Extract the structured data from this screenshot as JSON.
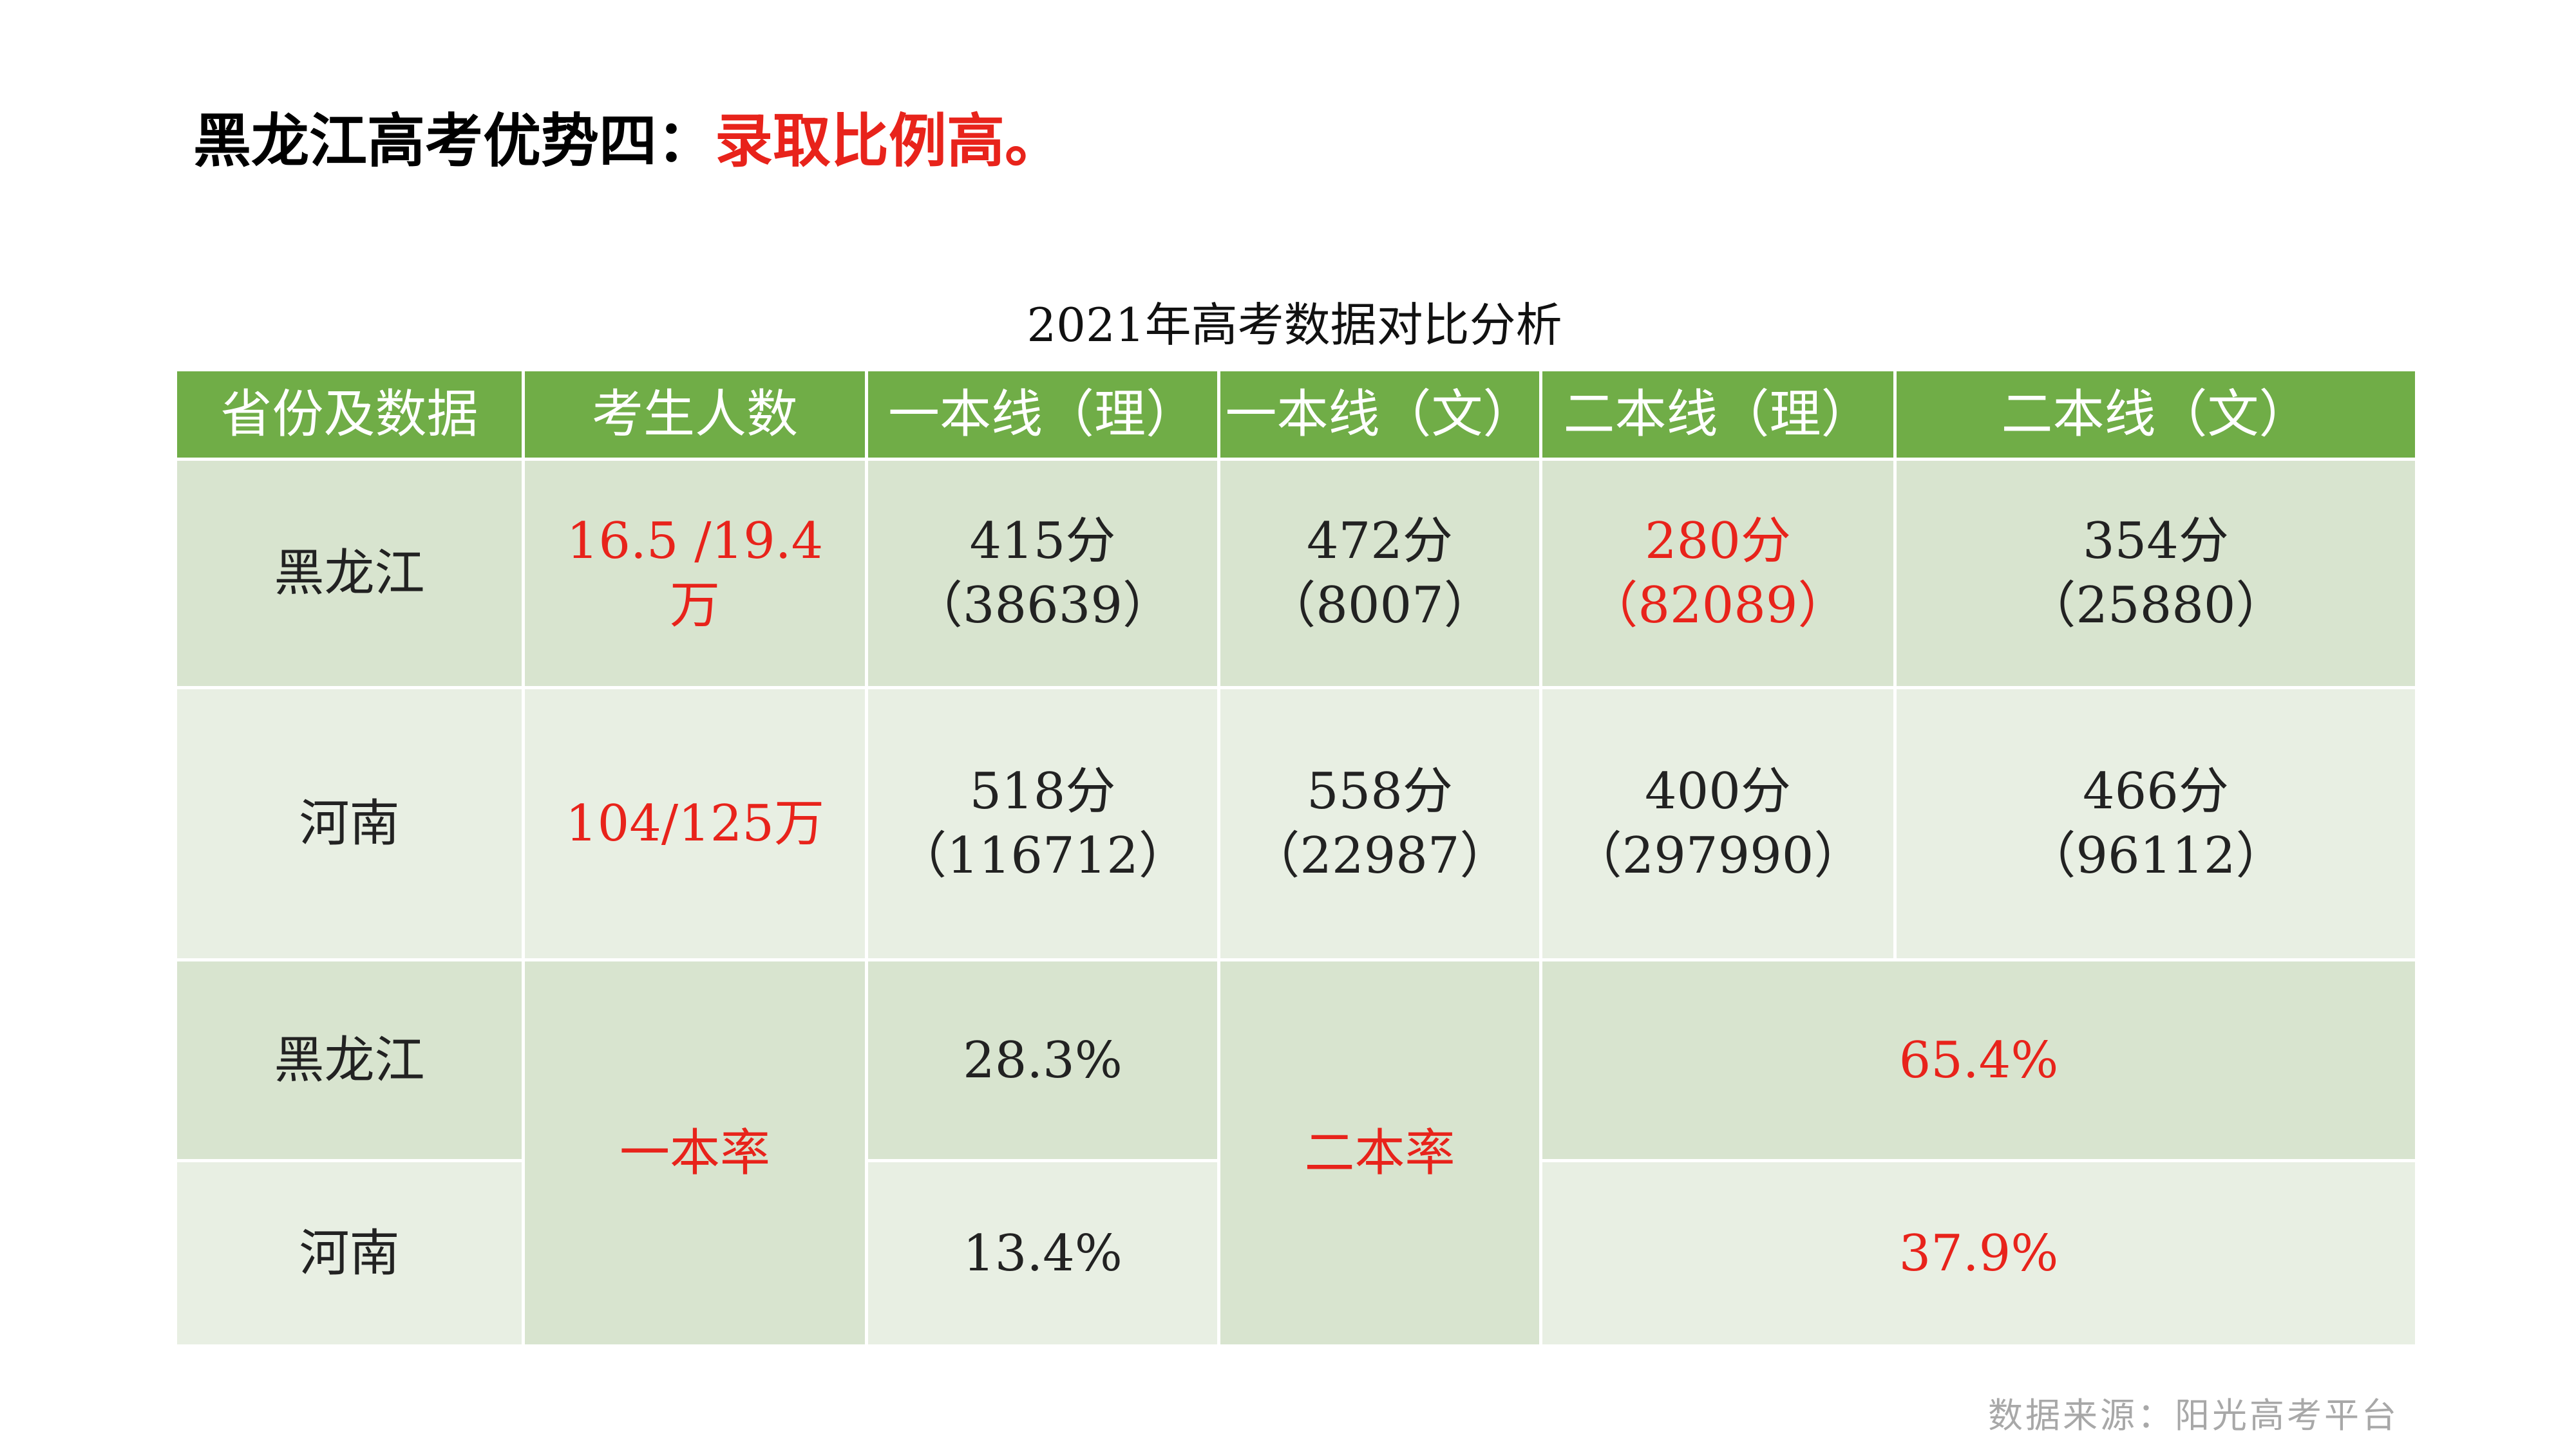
{
  "slide": {
    "title_prefix": "黑龙江高考优势四：",
    "title_highlight": "录取比例高。"
  },
  "table": {
    "caption": "2021年高考数据对比分析",
    "headers": [
      "省份及数据",
      "考生人数",
      "一本线（理）",
      "一本线（文）",
      "二本线（理）",
      "二本线（文）"
    ],
    "rows": [
      {
        "province": "黑龙江",
        "examinees_line1": "16.5 /19.4",
        "examinees_line2": "万",
        "tier1_sci_score": "415分",
        "tier1_sci_count": "（38639）",
        "tier1_arts_score": "472分",
        "tier1_arts_count": "（8007）",
        "tier2_sci_score": "280分",
        "tier2_sci_count": "（82089）",
        "tier2_arts_score": "354分",
        "tier2_arts_count": "（25880）"
      },
      {
        "province": "河南",
        "examinees_line1": "104/125万",
        "tier1_sci_score": "518分",
        "tier1_sci_count": "（116712）",
        "tier1_arts_score": "558分",
        "tier1_arts_count": "（22987）",
        "tier2_sci_score": "400分",
        "tier2_sci_count": "（297990）",
        "tier2_arts_score": "466分",
        "tier2_arts_count": "（96112）"
      }
    ],
    "rates": {
      "tier1_label": "一本率",
      "tier2_label": "二本率",
      "rows": [
        {
          "province": "黑龙江",
          "tier1_rate": "28.3%",
          "tier2_rate": "65.4%"
        },
        {
          "province": "河南",
          "tier1_rate": "13.4%",
          "tier2_rate": "37.9%"
        }
      ]
    }
  },
  "footer": {
    "source": "数据来源：阳光高考平台"
  },
  "colors": {
    "header_green": "#70ad47",
    "row_dark": "#d8e4cf",
    "row_light": "#e8efe3",
    "highlight_red": "#e8231b"
  }
}
